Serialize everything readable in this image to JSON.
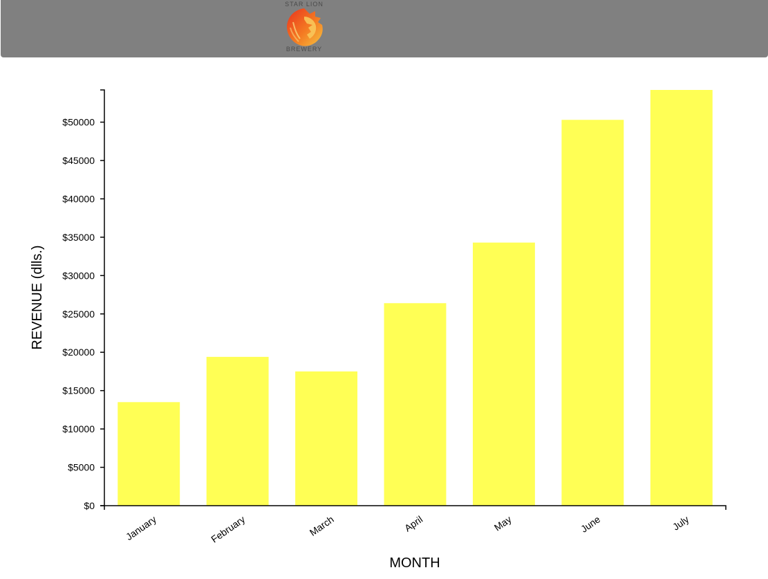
{
  "header": {
    "brand_top": "STAR LION",
    "brand_bottom": "BREWERY",
    "logo_icon": "lion-head-icon",
    "background_color": "#808080"
  },
  "chart_data": {
    "type": "bar",
    "categories": [
      "January",
      "February",
      "March",
      "April",
      "May",
      "June",
      "July"
    ],
    "values": [
      13500,
      19400,
      17500,
      26400,
      34300,
      50300,
      54200
    ],
    "xlabel": "MONTH",
    "ylabel": "REVENUE (dlls.)",
    "ylim": [
      0,
      54200
    ],
    "yticks": [
      0,
      5000,
      10000,
      15000,
      20000,
      25000,
      30000,
      35000,
      40000,
      45000,
      50000
    ],
    "ytick_labels": [
      "$0",
      "$5000",
      "$10000",
      "$15000",
      "$20000",
      "$25000",
      "$30000",
      "$35000",
      "$40000",
      "$45000",
      "$50000"
    ],
    "bar_color": "#ffff55",
    "grid": false,
    "legend": "none"
  }
}
